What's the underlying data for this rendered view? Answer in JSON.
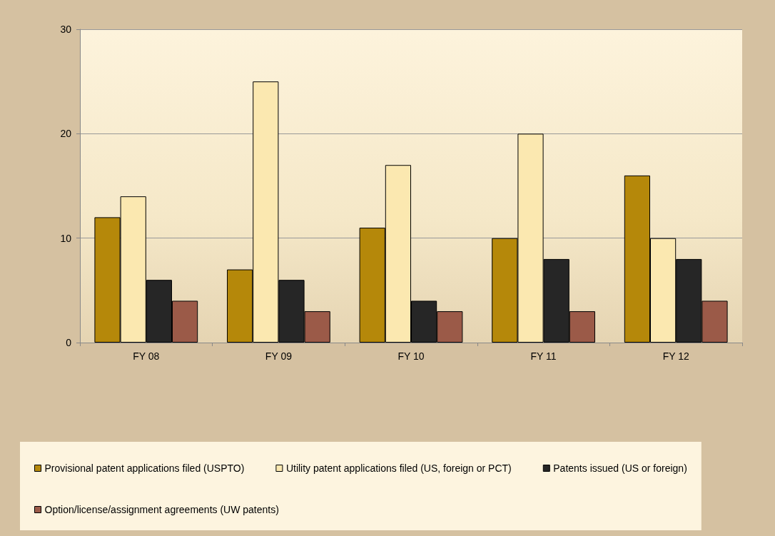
{
  "chart_data": {
    "type": "bar",
    "categories": [
      "FY 08",
      "FY 09",
      "FY 10",
      "FY 11",
      "FY 12"
    ],
    "series": [
      {
        "name": "Provisional patent applications filed (USPTO)",
        "color": "#b5880a",
        "values": [
          12,
          7,
          11,
          10,
          16
        ]
      },
      {
        "name": "Utility patent applications filed (US, foreign or PCT)",
        "color": "#fbe8b0",
        "values": [
          14,
          25,
          17,
          20,
          10
        ]
      },
      {
        "name": "Patents issued (US or foreign)",
        "color": "#262626",
        "values": [
          6,
          6,
          4,
          8,
          8
        ]
      },
      {
        "name": "Option/license/assignment agreements (UW patents)",
        "color": "#9b5a48",
        "values": [
          4,
          3,
          3,
          3,
          4
        ]
      }
    ],
    "ylim": [
      0,
      30
    ],
    "yticks": [
      0,
      10,
      20,
      30
    ],
    "grid": "y",
    "legend": "bottom"
  }
}
